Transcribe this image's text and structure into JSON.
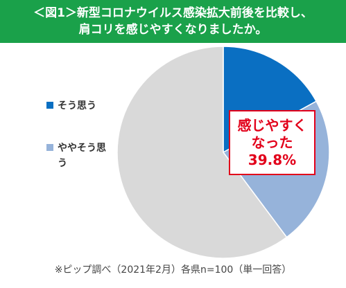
{
  "header": {
    "title_line1": "＜図1＞新型コロナウイルス感染拡大前後を比較し、",
    "title_line2": "肩コリを感じやすくなりましたか。"
  },
  "chart_data": {
    "type": "pie",
    "start": "12 o'clock",
    "direction": "clockwise",
    "slices": [
      {
        "label": "そう思う",
        "value": 17.0,
        "color": "#0a6fc2"
      },
      {
        "label": "ややそう思う",
        "value": 22.8,
        "color": "#96b3da"
      },
      {
        "label": "",
        "value": 60.2,
        "color": "#d9d9d9"
      }
    ],
    "legend": [
      {
        "label": "そう思う",
        "color": "#0a6fc2"
      },
      {
        "label": "ややそう思う",
        "color": "#96b3da"
      }
    ],
    "legend_position": "left"
  },
  "callout": {
    "line1": "感じやすく",
    "line2": "なった",
    "line3": "39.8%",
    "color": "#e2001a"
  },
  "source": "※ピップ調べ（2021年2月）各県n=100（単一回答）",
  "colors": {
    "header_bg": "#1aa14a",
    "header_text": "#ffffff"
  }
}
